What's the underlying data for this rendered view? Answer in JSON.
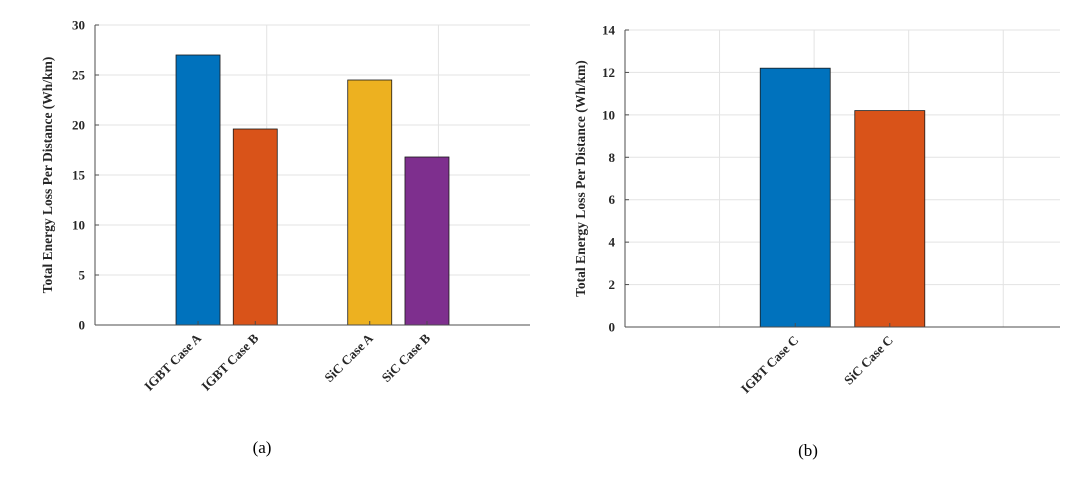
{
  "chart_data": [
    {
      "type": "bar",
      "panel_label": "(a)",
      "ylabel": "Total Energy Loss Per Distance (Wh/km)",
      "ylim": [
        0,
        30
      ],
      "yticks": [
        0,
        5,
        10,
        15,
        20,
        25,
        30
      ],
      "grid": true,
      "categories": [
        "IGBT Case A",
        "IGBT Case B",
        "SiC Case A",
        "SiC Case B"
      ],
      "values": [
        27.0,
        19.6,
        24.5,
        16.8
      ],
      "colors": [
        "#0072BD",
        "#D95319",
        "#EDB120",
        "#7E2F8E"
      ]
    },
    {
      "type": "bar",
      "panel_label": "(b)",
      "ylabel": "Total Energy Loss Per Distance (Wh/km)",
      "ylim": [
        0,
        14
      ],
      "yticks": [
        0,
        2,
        4,
        6,
        8,
        10,
        12,
        14
      ],
      "grid": true,
      "categories": [
        "IGBT Case C",
        "SiC Case C"
      ],
      "values": [
        12.2,
        10.2
      ],
      "colors": [
        "#0072BD",
        "#D95319"
      ]
    }
  ]
}
